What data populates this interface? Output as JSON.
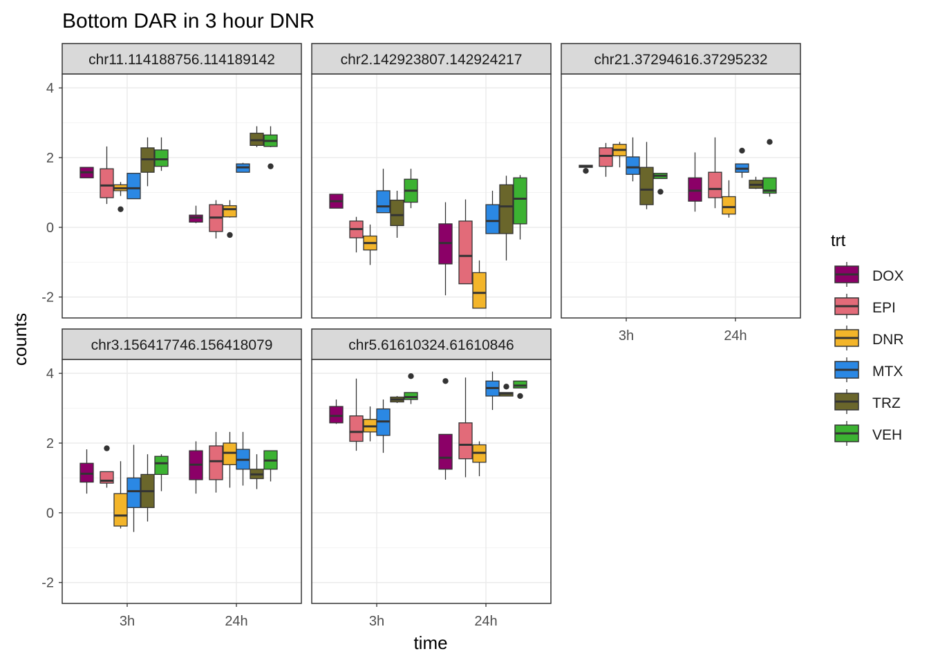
{
  "chart_data": {
    "type": "boxplot",
    "title": "Bottom DAR in 3 hour DNR",
    "xlabel": "time",
    "ylabel": "counts",
    "ylim": [
      -2.6,
      4.4
    ],
    "y_ticks": [
      -2,
      0,
      2,
      4
    ],
    "grid": true,
    "x_categories": [
      "3h",
      "24h"
    ],
    "legend": {
      "title": "trt",
      "position": "right",
      "entries": [
        {
          "name": "DOX",
          "color": "#8b0067"
        },
        {
          "name": "EPI",
          "color": "#e26b79"
        },
        {
          "name": "DNR",
          "color": "#f3b52a"
        },
        {
          "name": "MTX",
          "color": "#2b88e4"
        },
        {
          "name": "TRZ",
          "color": "#6a662b"
        },
        {
          "name": "VEH",
          "color": "#3cb232"
        }
      ]
    },
    "panels": [
      {
        "title": "chr11.114188756.114189142",
        "groups": {
          "3h": [
            {
              "trt": "DOX",
              "whislo": 1.42,
              "q1": 1.42,
              "med": 1.58,
              "q3": 1.72,
              "whishi": 1.72,
              "outliers": []
            },
            {
              "trt": "EPI",
              "whislo": 0.67,
              "q1": 0.85,
              "med": 1.2,
              "q3": 1.68,
              "whishi": 2.32,
              "outliers": []
            },
            {
              "trt": "DNR",
              "whislo": 0.9,
              "q1": 1.05,
              "med": 1.12,
              "q3": 1.22,
              "whishi": 1.3,
              "outliers": [
                0.52
              ]
            },
            {
              "trt": "MTX",
              "whislo": 0.82,
              "q1": 0.82,
              "med": 1.12,
              "q3": 1.55,
              "whishi": 1.55,
              "outliers": []
            },
            {
              "trt": "TRZ",
              "whislo": 1.18,
              "q1": 1.58,
              "med": 1.95,
              "q3": 2.28,
              "whishi": 2.58,
              "outliers": []
            },
            {
              "trt": "VEH",
              "whislo": 1.62,
              "q1": 1.75,
              "med": 1.95,
              "q3": 2.22,
              "whishi": 2.58,
              "outliers": []
            }
          ],
          "24h": [
            {
              "trt": "DOX",
              "whislo": 0.12,
              "q1": 0.15,
              "med": 0.28,
              "q3": 0.35,
              "whishi": 0.62,
              "outliers": []
            },
            {
              "trt": "EPI",
              "whislo": -0.32,
              "q1": -0.12,
              "med": 0.28,
              "q3": 0.65,
              "whishi": 0.78,
              "outliers": []
            },
            {
              "trt": "DNR",
              "whislo": 0.28,
              "q1": 0.3,
              "med": 0.52,
              "q3": 0.62,
              "whishi": 0.78,
              "outliers": [
                -0.22
              ]
            },
            {
              "trt": "MTX",
              "whislo": 1.58,
              "q1": 1.58,
              "med": 1.72,
              "q3": 1.82,
              "whishi": 1.85,
              "outliers": []
            },
            {
              "trt": "TRZ",
              "whislo": 2.3,
              "q1": 2.35,
              "med": 2.5,
              "q3": 2.7,
              "whishi": 2.9,
              "outliers": []
            },
            {
              "trt": "VEH",
              "whislo": 2.3,
              "q1": 2.32,
              "med": 2.48,
              "q3": 2.65,
              "whishi": 2.9,
              "outliers": [
                1.75
              ]
            }
          ]
        }
      },
      {
        "title": "chr2.142923807.142924217",
        "groups": {
          "3h": [
            {
              "trt": "DOX",
              "whislo": 0.55,
              "q1": 0.55,
              "med": 0.75,
              "q3": 0.95,
              "whishi": 0.95,
              "outliers": []
            },
            {
              "trt": "EPI",
              "whislo": -0.72,
              "q1": -0.3,
              "med": -0.05,
              "q3": 0.18,
              "whishi": 0.3,
              "outliers": []
            },
            {
              "trt": "DNR",
              "whislo": -1.08,
              "q1": -0.65,
              "med": -0.45,
              "q3": -0.25,
              "whishi": 0.08,
              "outliers": []
            },
            {
              "trt": "MTX",
              "whislo": 0.42,
              "q1": 0.42,
              "med": 0.6,
              "q3": 1.05,
              "whishi": 1.68,
              "outliers": []
            },
            {
              "trt": "TRZ",
              "whislo": -0.3,
              "q1": 0.05,
              "med": 0.35,
              "q3": 0.78,
              "whishi": 1.05,
              "outliers": []
            },
            {
              "trt": "VEH",
              "whislo": 0.55,
              "q1": 0.72,
              "med": 1.05,
              "q3": 1.38,
              "whishi": 1.68,
              "outliers": []
            }
          ],
          "24h": [
            {
              "trt": "DOX",
              "whislo": -1.95,
              "q1": -1.05,
              "med": -0.45,
              "q3": 0.1,
              "whishi": 0.72,
              "outliers": []
            },
            {
              "trt": "EPI",
              "whislo": -1.62,
              "q1": -1.62,
              "med": -0.82,
              "q3": 0.18,
              "whishi": 0.8,
              "outliers": []
            },
            {
              "trt": "DNR",
              "whislo": -2.32,
              "q1": -2.32,
              "med": -1.88,
              "q3": -1.3,
              "whishi": -0.95,
              "outliers": []
            },
            {
              "trt": "MTX",
              "whislo": -0.18,
              "q1": -0.18,
              "med": 0.18,
              "q3": 0.65,
              "whishi": 1.05,
              "outliers": []
            },
            {
              "trt": "TRZ",
              "whislo": -0.95,
              "q1": -0.18,
              "med": 0.6,
              "q3": 1.22,
              "whishi": 1.48,
              "outliers": []
            },
            {
              "trt": "VEH",
              "whislo": -0.35,
              "q1": 0.1,
              "med": 0.82,
              "q3": 1.42,
              "whishi": 1.5,
              "outliers": []
            }
          ]
        }
      },
      {
        "title": "chr21.37294616.37295232",
        "groups": {
          "3h": [
            {
              "trt": "DOX",
              "whislo": 1.72,
              "q1": 1.72,
              "med": 1.75,
              "q3": 1.78,
              "whishi": 1.78,
              "outliers": [
                1.62
              ]
            },
            {
              "trt": "EPI",
              "whislo": 1.45,
              "q1": 1.75,
              "med": 2.05,
              "q3": 2.28,
              "whishi": 2.42,
              "outliers": []
            },
            {
              "trt": "DNR",
              "whislo": 1.72,
              "q1": 2.05,
              "med": 2.22,
              "q3": 2.38,
              "whishi": 2.45,
              "outliers": []
            },
            {
              "trt": "MTX",
              "whislo": 1.32,
              "q1": 1.52,
              "med": 1.72,
              "q3": 2.02,
              "whishi": 2.58,
              "outliers": []
            },
            {
              "trt": "TRZ",
              "whislo": 0.52,
              "q1": 0.65,
              "med": 1.08,
              "q3": 1.72,
              "whishi": 2.45,
              "outliers": []
            },
            {
              "trt": "VEH",
              "whislo": 1.4,
              "q1": 1.4,
              "med": 1.48,
              "q3": 1.55,
              "whishi": 1.55,
              "outliers": [
                1.02
              ]
            }
          ],
          "24h": [
            {
              "trt": "DOX",
              "whislo": 0.45,
              "q1": 0.75,
              "med": 1.05,
              "q3": 1.42,
              "whishi": 2.15,
              "outliers": []
            },
            {
              "trt": "EPI",
              "whislo": 0.55,
              "q1": 0.85,
              "med": 1.1,
              "q3": 1.58,
              "whishi": 2.58,
              "outliers": []
            },
            {
              "trt": "DNR",
              "whislo": 0.28,
              "q1": 0.38,
              "med": 0.58,
              "q3": 0.88,
              "whishi": 1.35,
              "outliers": []
            },
            {
              "trt": "MTX",
              "whislo": 1.42,
              "q1": 1.58,
              "med": 1.68,
              "q3": 1.82,
              "whishi": 1.82,
              "outliers": [
                2.2
              ]
            },
            {
              "trt": "TRZ",
              "whislo": 1.1,
              "q1": 1.12,
              "med": 1.22,
              "q3": 1.35,
              "whishi": 1.45,
              "outliers": []
            },
            {
              "trt": "VEH",
              "whislo": 0.88,
              "q1": 0.98,
              "med": 1.05,
              "q3": 1.42,
              "whishi": 1.42,
              "outliers": [
                2.45
              ]
            }
          ]
        }
      },
      {
        "title": "chr3.156417746.156418079",
        "groups": {
          "3h": [
            {
              "trt": "DOX",
              "whislo": 0.55,
              "q1": 0.88,
              "med": 1.12,
              "q3": 1.42,
              "whishi": 1.82,
              "outliers": []
            },
            {
              "trt": "EPI",
              "whislo": 0.72,
              "q1": 0.85,
              "med": 0.92,
              "q3": 1.18,
              "whishi": 1.18,
              "outliers": [
                1.85
              ]
            },
            {
              "trt": "DNR",
              "whislo": -0.45,
              "q1": -0.38,
              "med": -0.08,
              "q3": 0.55,
              "whishi": 1.48,
              "outliers": []
            },
            {
              "trt": "MTX",
              "whislo": -0.55,
              "q1": 0.15,
              "med": 0.62,
              "q3": 1.0,
              "whishi": 1.95,
              "outliers": []
            },
            {
              "trt": "TRZ",
              "whislo": -0.25,
              "q1": 0.15,
              "med": 0.62,
              "q3": 1.1,
              "whishi": 1.68,
              "outliers": []
            },
            {
              "trt": "VEH",
              "whislo": 0.62,
              "q1": 1.1,
              "med": 1.42,
              "q3": 1.62,
              "whishi": 1.68,
              "outliers": []
            }
          ],
          "24h": [
            {
              "trt": "DOX",
              "whislo": 0.55,
              "q1": 0.95,
              "med": 1.38,
              "q3": 1.78,
              "whishi": 2.05,
              "outliers": []
            },
            {
              "trt": "EPI",
              "whislo": 0.58,
              "q1": 0.95,
              "med": 1.48,
              "q3": 1.92,
              "whishi": 2.32,
              "outliers": []
            },
            {
              "trt": "DNR",
              "whislo": 0.72,
              "q1": 1.38,
              "med": 1.72,
              "q3": 2.0,
              "whishi": 2.32,
              "outliers": []
            },
            {
              "trt": "MTX",
              "whislo": 0.78,
              "q1": 1.25,
              "med": 1.52,
              "q3": 1.82,
              "whishi": 2.32,
              "outliers": []
            },
            {
              "trt": "TRZ",
              "whislo": 0.68,
              "q1": 0.98,
              "med": 1.1,
              "q3": 1.25,
              "whishi": 1.68,
              "outliers": []
            },
            {
              "trt": "VEH",
              "whislo": 0.9,
              "q1": 1.25,
              "med": 1.5,
              "q3": 1.78,
              "whishi": 1.78,
              "outliers": []
            }
          ]
        }
      },
      {
        "title": "chr5.61610324.61610846",
        "groups": {
          "3h": [
            {
              "trt": "DOX",
              "whislo": 2.55,
              "q1": 2.58,
              "med": 2.78,
              "q3": 3.05,
              "whishi": 3.25,
              "outliers": []
            },
            {
              "trt": "EPI",
              "whislo": 1.78,
              "q1": 2.05,
              "med": 2.32,
              "q3": 2.78,
              "whishi": 3.85,
              "outliers": []
            },
            {
              "trt": "DNR",
              "whislo": 2.05,
              "q1": 2.32,
              "med": 2.48,
              "q3": 2.68,
              "whishi": 3.05,
              "outliers": []
            },
            {
              "trt": "MTX",
              "whislo": 1.72,
              "q1": 2.22,
              "med": 2.62,
              "q3": 2.98,
              "whishi": 3.25,
              "outliers": []
            },
            {
              "trt": "TRZ",
              "whislo": 3.15,
              "q1": 3.18,
              "med": 3.25,
              "q3": 3.32,
              "whishi": 3.35,
              "outliers": []
            },
            {
              "trt": "VEH",
              "whislo": 3.12,
              "q1": 3.25,
              "med": 3.32,
              "q3": 3.45,
              "whishi": 3.45,
              "outliers": [
                3.92
              ]
            }
          ],
          "24h": [
            {
              "trt": "DOX",
              "whislo": 0.95,
              "q1": 1.25,
              "med": 1.58,
              "q3": 2.25,
              "whishi": 2.25,
              "outliers": [
                3.78
              ]
            },
            {
              "trt": "EPI",
              "whislo": 1.02,
              "q1": 1.55,
              "med": 1.95,
              "q3": 2.58,
              "whishi": 3.88,
              "outliers": []
            },
            {
              "trt": "DNR",
              "whislo": 1.05,
              "q1": 1.45,
              "med": 1.72,
              "q3": 1.95,
              "whishi": 2.05,
              "outliers": []
            },
            {
              "trt": "MTX",
              "whislo": 2.95,
              "q1": 3.35,
              "med": 3.58,
              "q3": 3.78,
              "whishi": 4.05,
              "outliers": []
            },
            {
              "trt": "TRZ",
              "whislo": 3.35,
              "q1": 3.35,
              "med": 3.42,
              "q3": 3.45,
              "whishi": 3.45,
              "outliers": [
                3.62
              ]
            },
            {
              "trt": "VEH",
              "whislo": 3.58,
              "q1": 3.58,
              "med": 3.65,
              "q3": 3.78,
              "whishi": 3.78,
              "outliers": [
                3.35
              ]
            }
          ]
        }
      }
    ]
  }
}
